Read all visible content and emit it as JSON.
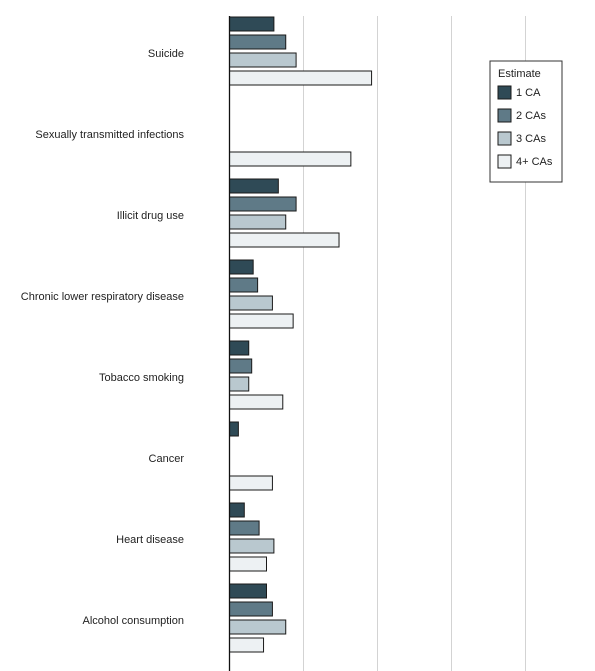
{
  "chart_data": {
    "type": "bar",
    "orientation": "horizontal",
    "title": "",
    "xlabel": "",
    "ylabel": "",
    "categories": [
      "Suicide",
      "Sexually transmitted infections",
      "Illicit drug use",
      "Chronic lower respiratory disease",
      "Tobacco smoking",
      "Cancer",
      "Heart disease",
      "Alcohol consumption"
    ],
    "series": [
      {
        "name": "1 CA",
        "color": "#2f4a56",
        "values": [
          0.3,
          null,
          0.33,
          0.16,
          0.13,
          0.06,
          0.1,
          0.25
        ]
      },
      {
        "name": "2 CAs",
        "color": "#5f7a87",
        "values": [
          0.38,
          null,
          0.45,
          0.19,
          0.15,
          null,
          0.2,
          0.29
        ]
      },
      {
        "name": "3 CAs",
        "color": "#b9c8cf",
        "values": [
          0.45,
          null,
          0.38,
          0.29,
          0.13,
          null,
          0.3,
          0.38
        ]
      },
      {
        "name": "4+ CAs",
        "color": "#edf1f3",
        "values": [
          0.96,
          0.82,
          0.74,
          0.43,
          0.36,
          0.29,
          0.25,
          0.23
        ]
      }
    ],
    "xlim": [
      0,
      2.5
    ],
    "grid": "vertical",
    "legend": {
      "title": "Estimate",
      "position": "top-right"
    },
    "colors": {
      "bar_stroke": "#1a1a1a",
      "grid": "#d3d3d3",
      "axis": "#111111"
    }
  }
}
